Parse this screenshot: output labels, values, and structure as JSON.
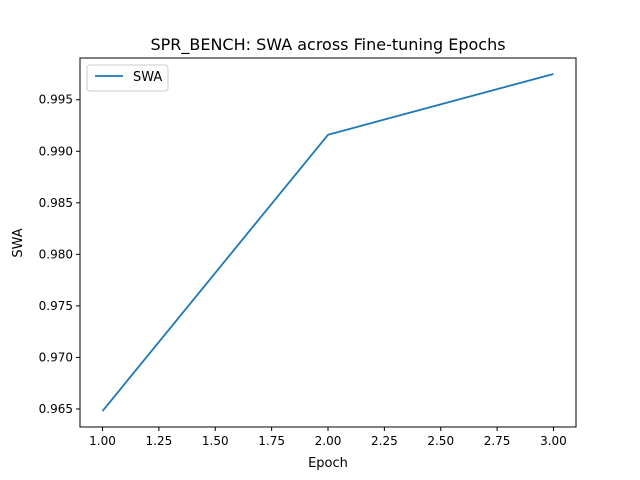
{
  "chart_data": {
    "type": "line",
    "title": "SPR_BENCH: SWA across Fine-tuning Epochs",
    "xlabel": "Epoch",
    "ylabel": "SWA",
    "xlim": [
      0.9,
      3.1
    ],
    "ylim": [
      0.96325,
      0.99905
    ],
    "xticks": [
      1.0,
      1.25,
      1.5,
      1.75,
      2.0,
      2.25,
      2.5,
      2.75,
      3.0
    ],
    "xtick_labels": [
      "1.00",
      "1.25",
      "1.50",
      "1.75",
      "2.00",
      "2.25",
      "2.50",
      "2.75",
      "3.00"
    ],
    "yticks": [
      0.965,
      0.97,
      0.975,
      0.98,
      0.985,
      0.99,
      0.995
    ],
    "ytick_labels": [
      "0.965",
      "0.970",
      "0.975",
      "0.980",
      "0.985",
      "0.990",
      "0.995"
    ],
    "grid": false,
    "legend": {
      "position": "top-left",
      "entries": [
        "SWA"
      ]
    },
    "series": [
      {
        "name": "SWA",
        "color": "#1f77b4",
        "x": [
          1,
          2,
          3
        ],
        "y": [
          0.9648,
          0.9916,
          0.9975
        ]
      }
    ]
  }
}
